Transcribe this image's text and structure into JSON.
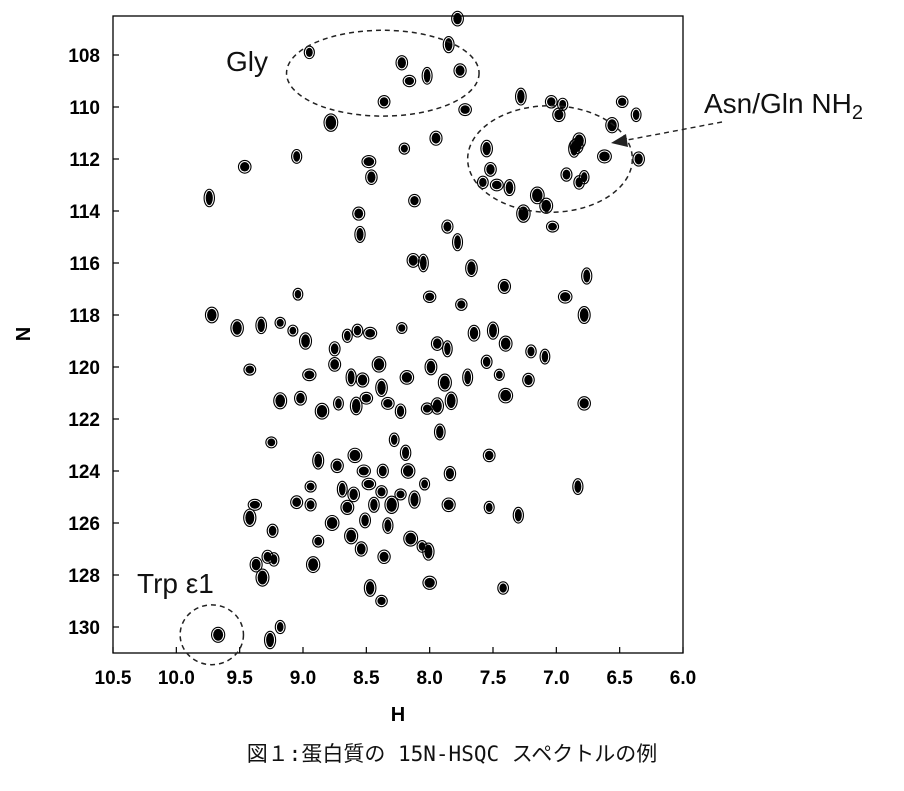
{
  "caption": "図１:蛋白質の 15N-HSQC スペクトルの例",
  "chart_data": {
    "type": "scatter",
    "subtype": "2D NMR contour spectrum (15N-HSQC)",
    "xlabel": "H",
    "ylabel": "N",
    "xlim": [
      10.5,
      6.0
    ],
    "ylim": [
      131.0,
      106.5
    ],
    "x_reversed": true,
    "y_reversed": true,
    "xticks": [
      "10.5",
      "10.0",
      "9.5",
      "9.0",
      "8.5",
      "8.0",
      "7.5",
      "7.0",
      "6.5",
      "6.0"
    ],
    "yticks": [
      "108",
      "110",
      "112",
      "114",
      "116",
      "118",
      "120",
      "122",
      "124",
      "126",
      "128",
      "130"
    ],
    "grid": false,
    "annotations": [
      {
        "label": "Gly",
        "region": {
          "cx": 8.37,
          "cy": 108.7,
          "rx": 0.76,
          "ry": 1.65
        }
      },
      {
        "label": "Asn/Gln NH",
        "subscript": "2",
        "region": {
          "cx": 7.05,
          "cy": 112.0,
          "rx": 0.65,
          "ry": 2.05
        }
      },
      {
        "label": "Trp ε1",
        "region": {
          "cx": 9.72,
          "cy": 130.3,
          "rx": 0.25,
          "ry": 1.15
        }
      }
    ],
    "peaks": [
      [
        7.78,
        106.6
      ],
      [
        8.95,
        107.9
      ],
      [
        8.22,
        108.3
      ],
      [
        8.02,
        108.8
      ],
      [
        7.76,
        108.6
      ],
      [
        7.85,
        107.6
      ],
      [
        8.16,
        109.0
      ],
      [
        8.36,
        109.8
      ],
      [
        7.72,
        110.1
      ],
      [
        7.95,
        111.2
      ],
      [
        8.2,
        111.6
      ],
      [
        8.78,
        110.6
      ],
      [
        9.05,
        111.9
      ],
      [
        8.48,
        112.1
      ],
      [
        8.46,
        112.7
      ],
      [
        9.46,
        112.3
      ],
      [
        9.74,
        113.5
      ],
      [
        8.12,
        113.6
      ],
      [
        8.56,
        114.1
      ],
      [
        8.55,
        114.9
      ],
      [
        7.86,
        114.6
      ],
      [
        7.78,
        115.2
      ],
      [
        7.28,
        109.6
      ],
      [
        7.04,
        109.8
      ],
      [
        6.98,
        110.3
      ],
      [
        6.84,
        111.5
      ],
      [
        6.95,
        109.9
      ],
      [
        6.48,
        109.8
      ],
      [
        6.37,
        110.3
      ],
      [
        6.56,
        110.7
      ],
      [
        6.62,
        111.9
      ],
      [
        6.35,
        112.0
      ],
      [
        7.55,
        111.6
      ],
      [
        7.52,
        112.4
      ],
      [
        7.58,
        112.9
      ],
      [
        7.47,
        113.0
      ],
      [
        7.37,
        113.1
      ],
      [
        7.26,
        114.1
      ],
      [
        7.15,
        113.4
      ],
      [
        7.08,
        113.8
      ],
      [
        7.03,
        114.6
      ],
      [
        6.92,
        112.6
      ],
      [
        6.82,
        112.9
      ],
      [
        6.82,
        111.3
      ],
      [
        6.86,
        111.6
      ],
      [
        6.78,
        112.7
      ],
      [
        8.13,
        115.9
      ],
      [
        8.05,
        116.0
      ],
      [
        7.67,
        116.2
      ],
      [
        7.41,
        116.9
      ],
      [
        6.76,
        116.5
      ],
      [
        6.93,
        117.3
      ],
      [
        9.04,
        117.2
      ],
      [
        9.72,
        118.0
      ],
      [
        9.52,
        118.5
      ],
      [
        9.33,
        118.4
      ],
      [
        9.18,
        118.3
      ],
      [
        9.08,
        118.6
      ],
      [
        8.98,
        119.0
      ],
      [
        8.95,
        120.3
      ],
      [
        9.42,
        120.1
      ],
      [
        8.75,
        119.3
      ],
      [
        8.65,
        118.8
      ],
      [
        8.57,
        118.6
      ],
      [
        8.47,
        118.7
      ],
      [
        8.22,
        118.5
      ],
      [
        8.0,
        117.3
      ],
      [
        7.75,
        117.6
      ],
      [
        7.94,
        119.1
      ],
      [
        7.86,
        119.3
      ],
      [
        7.65,
        118.7
      ],
      [
        7.5,
        118.6
      ],
      [
        7.4,
        119.1
      ],
      [
        7.55,
        119.8
      ],
      [
        7.7,
        120.4
      ],
      [
        7.45,
        120.3
      ],
      [
        7.2,
        119.4
      ],
      [
        7.09,
        119.6
      ],
      [
        7.22,
        120.5
      ],
      [
        6.78,
        118.0
      ],
      [
        8.75,
        119.9
      ],
      [
        8.62,
        120.4
      ],
      [
        8.53,
        120.5
      ],
      [
        8.4,
        119.9
      ],
      [
        8.38,
        120.8
      ],
      [
        8.18,
        120.4
      ],
      [
        7.99,
        120.0
      ],
      [
        7.88,
        120.6
      ],
      [
        7.83,
        121.3
      ],
      [
        7.94,
        121.5
      ],
      [
        8.02,
        121.6
      ],
      [
        7.4,
        121.1
      ],
      [
        6.78,
        121.4
      ],
      [
        9.18,
        121.3
      ],
      [
        9.02,
        121.2
      ],
      [
        8.85,
        121.7
      ],
      [
        8.72,
        121.4
      ],
      [
        8.58,
        121.5
      ],
      [
        8.5,
        121.2
      ],
      [
        8.33,
        121.4
      ],
      [
        8.23,
        121.7
      ],
      [
        9.25,
        122.9
      ],
      [
        8.59,
        123.4
      ],
      [
        8.28,
        122.8
      ],
      [
        8.19,
        123.3
      ],
      [
        7.92,
        122.5
      ],
      [
        8.88,
        123.6
      ],
      [
        8.73,
        123.8
      ],
      [
        8.52,
        124.0
      ],
      [
        8.37,
        124.0
      ],
      [
        8.17,
        124.0
      ],
      [
        8.04,
        124.5
      ],
      [
        7.53,
        123.4
      ],
      [
        7.84,
        124.1
      ],
      [
        8.94,
        124.6
      ],
      [
        8.69,
        124.7
      ],
      [
        8.6,
        124.9
      ],
      [
        8.48,
        124.5
      ],
      [
        8.38,
        124.8
      ],
      [
        8.23,
        124.9
      ],
      [
        6.83,
        124.6
      ],
      [
        9.38,
        125.3
      ],
      [
        9.05,
        125.2
      ],
      [
        8.94,
        125.3
      ],
      [
        8.65,
        125.4
      ],
      [
        8.44,
        125.3
      ],
      [
        8.3,
        125.3
      ],
      [
        8.12,
        125.1
      ],
      [
        7.85,
        125.3
      ],
      [
        7.53,
        125.4
      ],
      [
        7.3,
        125.7
      ],
      [
        9.42,
        125.8
      ],
      [
        9.24,
        126.3
      ],
      [
        8.88,
        126.7
      ],
      [
        8.77,
        126.0
      ],
      [
        8.62,
        126.5
      ],
      [
        8.51,
        125.9
      ],
      [
        8.33,
        126.1
      ],
      [
        8.15,
        126.6
      ],
      [
        9.28,
        127.3
      ],
      [
        9.37,
        127.6
      ],
      [
        9.23,
        127.4
      ],
      [
        8.92,
        127.6
      ],
      [
        8.54,
        127.0
      ],
      [
        8.36,
        127.3
      ],
      [
        8.06,
        126.9
      ],
      [
        8.01,
        127.1
      ],
      [
        9.32,
        128.1
      ],
      [
        8.47,
        128.5
      ],
      [
        8.38,
        129.0
      ],
      [
        8.0,
        128.3
      ],
      [
        7.42,
        128.5
      ],
      [
        9.18,
        130.0
      ],
      [
        9.26,
        130.5
      ],
      [
        9.67,
        130.3
      ]
    ]
  }
}
